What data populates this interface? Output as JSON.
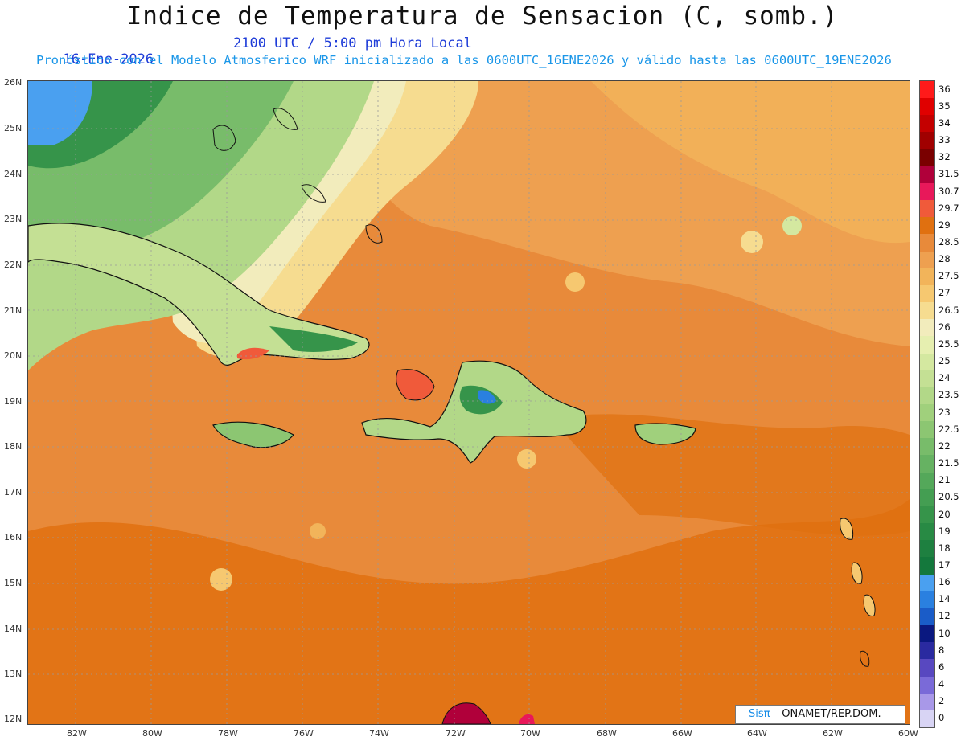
{
  "title": "Indice de Temperatura de Sensacion (C, somb.)",
  "date_text": "16-Ene-2026",
  "time_text": "2100 UTC / 5:00 pm Hora Local",
  "forecast_text": "Pronóstico con el Modelo Atmosferico WRF inicializado a las 0600UTC_16ENE2026 y válido hasta las  0600UTC_19ENE2026",
  "credit": {
    "sis": "Sisπ",
    "org": " – ONAMET/REP.DOM."
  },
  "latitudes": [
    "26N",
    "25N",
    "24N",
    "23N",
    "22N",
    "21N",
    "20N",
    "19N",
    "18N",
    "17N",
    "16N",
    "15N",
    "14N",
    "13N",
    "12N"
  ],
  "longitudes": [
    "82W",
    "80W",
    "78W",
    "76W",
    "74W",
    "72W",
    "70W",
    "68W",
    "66W",
    "64W",
    "62W",
    "60W"
  ],
  "colorbar": [
    {
      "label": "36",
      "color": "#ff1a1a"
    },
    {
      "label": "35",
      "color": "#e00000"
    },
    {
      "label": "34",
      "color": "#c40000"
    },
    {
      "label": "33",
      "color": "#a00000"
    },
    {
      "label": "32",
      "color": "#7a0000"
    },
    {
      "label": "31.5",
      "color": "#b0003a"
    },
    {
      "label": "30.7",
      "color": "#e8185a"
    },
    {
      "label": "29.7",
      "color": "#f05a3a"
    },
    {
      "label": "29",
      "color": "#e07010"
    },
    {
      "label": "28.5",
      "color": "#e88a3a"
    },
    {
      "label": "28",
      "color": "#eea050"
    },
    {
      "label": "27.5",
      "color": "#f2b45a"
    },
    {
      "label": "27",
      "color": "#f6c870"
    },
    {
      "label": "26.5",
      "color": "#f6dc90"
    },
    {
      "label": "26",
      "color": "#f2ecbc"
    },
    {
      "label": "25.5",
      "color": "#e6efb0"
    },
    {
      "label": "25",
      "color": "#d4e8a0"
    },
    {
      "label": "24",
      "color": "#c4e094"
    },
    {
      "label": "23.5",
      "color": "#b2d888"
    },
    {
      "label": "23",
      "color": "#a0d07c"
    },
    {
      "label": "22.5",
      "color": "#8cc672"
    },
    {
      "label": "22",
      "color": "#78bc6a"
    },
    {
      "label": "21.5",
      "color": "#66b262"
    },
    {
      "label": "21",
      "color": "#54a85a"
    },
    {
      "label": "20.5",
      "color": "#449e52"
    },
    {
      "label": "20",
      "color": "#36944a"
    },
    {
      "label": "19",
      "color": "#288a44"
    },
    {
      "label": "18",
      "color": "#1e8040"
    },
    {
      "label": "17",
      "color": "#14783c"
    },
    {
      "label": "16",
      "color": "#4aa0f0"
    },
    {
      "label": "14",
      "color": "#2a80e0"
    },
    {
      "label": "12",
      "color": "#1a5cc8"
    },
    {
      "label": "10",
      "color": "#0a1880"
    },
    {
      "label": "8",
      "color": "#2a2aa0"
    },
    {
      "label": "6",
      "color": "#5848c0"
    },
    {
      "label": "4",
      "color": "#7a6ad8"
    },
    {
      "label": "2",
      "color": "#a898e8"
    },
    {
      "label": "0",
      "color": "#d8d4f4"
    }
  ],
  "colors": {
    "ocean_main": "#e88a3a",
    "ocean_south": "#e07010",
    "ocean_north": "#eea050",
    "north_yellow": "#f2b45a",
    "pale_band": "#f2ecbc",
    "green_light": "#b2d888",
    "green_mid": "#66b262",
    "green_dark": "#1e8040",
    "blue_fl": "#4aa0f0",
    "title_color": "#111111",
    "date_color": "#1e3cd8",
    "forecast_color": "#1a96e8"
  }
}
